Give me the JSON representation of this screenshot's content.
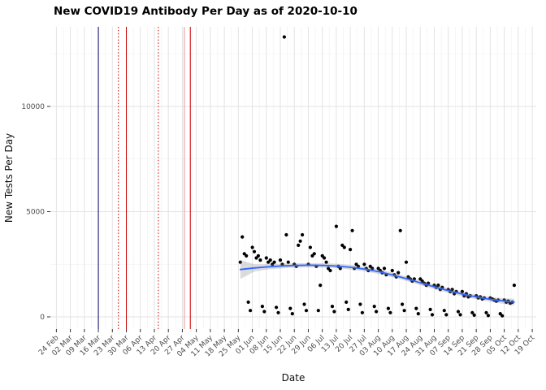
{
  "chart_data": {
    "type": "scatter",
    "title": "New COVID19 Antibody Per Day as of 2020-10-10",
    "xlabel": "Date",
    "ylabel": "New Tests Per Day",
    "x_domain": [
      "2020-02-21",
      "2020-10-21"
    ],
    "ylim": [
      -600,
      13800
    ],
    "grid": true,
    "legend": "none",
    "colors": {
      "point": "#000000",
      "smooth_line": "#3366FF",
      "ribbon": "#808080",
      "grid_major": "#E3E3E3",
      "grid_minor": "#F2F2F2",
      "axis_text": "#4D4D4D",
      "vline_navy": "#000066",
      "vline_red": "#CC0000",
      "vline_pink": "#E89090"
    },
    "x_ticks": [
      {
        "d": "2020-02-24",
        "label": "24 Feb"
      },
      {
        "d": "2020-03-02",
        "label": "02 Mar"
      },
      {
        "d": "2020-03-09",
        "label": "09 Mar"
      },
      {
        "d": "2020-03-16",
        "label": "16 Mar"
      },
      {
        "d": "2020-03-23",
        "label": "23 Mar"
      },
      {
        "d": "2020-03-30",
        "label": "30 Mar"
      },
      {
        "d": "2020-04-06",
        "label": "06 Apr"
      },
      {
        "d": "2020-04-13",
        "label": "13 Apr"
      },
      {
        "d": "2020-04-20",
        "label": "20 Apr"
      },
      {
        "d": "2020-04-27",
        "label": "27 Apr"
      },
      {
        "d": "2020-05-04",
        "label": "04 May"
      },
      {
        "d": "2020-05-11",
        "label": "11 May"
      },
      {
        "d": "2020-05-18",
        "label": "18 May"
      },
      {
        "d": "2020-05-25",
        "label": "25 May"
      },
      {
        "d": "2020-06-01",
        "label": "01 Jun"
      },
      {
        "d": "2020-06-08",
        "label": "08 Jun"
      },
      {
        "d": "2020-06-15",
        "label": "15 Jun"
      },
      {
        "d": "2020-06-22",
        "label": "22 Jun"
      },
      {
        "d": "2020-06-29",
        "label": "29 Jun"
      },
      {
        "d": "2020-07-06",
        "label": "06 Jul"
      },
      {
        "d": "2020-07-13",
        "label": "13 Jul"
      },
      {
        "d": "2020-07-20",
        "label": "20 Jul"
      },
      {
        "d": "2020-07-27",
        "label": "27 Jul"
      },
      {
        "d": "2020-08-03",
        "label": "03 Aug"
      },
      {
        "d": "2020-08-10",
        "label": "10 Aug"
      },
      {
        "d": "2020-08-17",
        "label": "17 Aug"
      },
      {
        "d": "2020-08-24",
        "label": "24 Aug"
      },
      {
        "d": "2020-08-31",
        "label": "31 Aug"
      },
      {
        "d": "2020-09-07",
        "label": "07 Sep"
      },
      {
        "d": "2020-09-14",
        "label": "14 Sep"
      },
      {
        "d": "2020-09-21",
        "label": "21 Sep"
      },
      {
        "d": "2020-09-28",
        "label": "28 Sep"
      },
      {
        "d": "2020-10-05",
        "label": "05 Oct"
      },
      {
        "d": "2020-10-12",
        "label": "12 Oct"
      },
      {
        "d": "2020-10-19",
        "label": "19 Oct"
      }
    ],
    "y_ticks": [
      {
        "v": 0,
        "label": "0"
      },
      {
        "v": 5000,
        "label": "5000"
      },
      {
        "v": 10000,
        "label": "10000"
      }
    ],
    "y_minor": [
      2500,
      7500,
      12500
    ],
    "vlines": [
      {
        "d": "2020-03-16",
        "style": "solid",
        "color": "#000066"
      },
      {
        "d": "2020-03-26",
        "style": "dotted",
        "color": "#CC0000"
      },
      {
        "d": "2020-03-30",
        "style": "solid",
        "color": "#CC0000"
      },
      {
        "d": "2020-04-15",
        "style": "dotted",
        "color": "#CC0000"
      },
      {
        "d": "2020-04-28",
        "style": "solid",
        "color": "#E89090"
      },
      {
        "d": "2020-05-01",
        "style": "solid",
        "color": "#CC0000"
      }
    ],
    "points": [
      [
        "2020-05-26",
        2600
      ],
      [
        "2020-05-27",
        3800
      ],
      [
        "2020-05-28",
        3000
      ],
      [
        "2020-05-29",
        2900
      ],
      [
        "2020-05-30",
        700
      ],
      [
        "2020-05-31",
        300
      ],
      [
        "2020-06-01",
        3300
      ],
      [
        "2020-06-02",
        3100
      ],
      [
        "2020-06-03",
        2800
      ],
      [
        "2020-06-04",
        2900
      ],
      [
        "2020-06-05",
        2700
      ],
      [
        "2020-06-06",
        500
      ],
      [
        "2020-06-07",
        250
      ],
      [
        "2020-06-08",
        2800
      ],
      [
        "2020-06-09",
        2600
      ],
      [
        "2020-06-10",
        2700
      ],
      [
        "2020-06-11",
        2500
      ],
      [
        "2020-06-12",
        2600
      ],
      [
        "2020-06-13",
        450
      ],
      [
        "2020-06-14",
        200
      ],
      [
        "2020-06-15",
        2700
      ],
      [
        "2020-06-16",
        2500
      ],
      [
        "2020-06-17",
        13300
      ],
      [
        "2020-06-18",
        3900
      ],
      [
        "2020-06-19",
        2600
      ],
      [
        "2020-06-20",
        400
      ],
      [
        "2020-06-21",
        150
      ],
      [
        "2020-06-22",
        2500
      ],
      [
        "2020-06-23",
        2400
      ],
      [
        "2020-06-24",
        3400
      ],
      [
        "2020-06-25",
        3600
      ],
      [
        "2020-06-26",
        3900
      ],
      [
        "2020-06-27",
        600
      ],
      [
        "2020-06-28",
        300
      ],
      [
        "2020-06-29",
        2500
      ],
      [
        "2020-06-30",
        3300
      ],
      [
        "2020-07-01",
        2900
      ],
      [
        "2020-07-02",
        3000
      ],
      [
        "2020-07-03",
        2400
      ],
      [
        "2020-07-04",
        300
      ],
      [
        "2020-07-05",
        1500
      ],
      [
        "2020-07-06",
        2900
      ],
      [
        "2020-07-07",
        2800
      ],
      [
        "2020-07-08",
        2600
      ],
      [
        "2020-07-09",
        2300
      ],
      [
        "2020-07-10",
        2200
      ],
      [
        "2020-07-11",
        500
      ],
      [
        "2020-07-12",
        250
      ],
      [
        "2020-07-13",
        4300
      ],
      [
        "2020-07-14",
        2400
      ],
      [
        "2020-07-15",
        2300
      ],
      [
        "2020-07-16",
        3400
      ],
      [
        "2020-07-17",
        3300
      ],
      [
        "2020-07-18",
        700
      ],
      [
        "2020-07-19",
        350
      ],
      [
        "2020-07-20",
        3200
      ],
      [
        "2020-07-21",
        4100
      ],
      [
        "2020-07-22",
        2300
      ],
      [
        "2020-07-23",
        2500
      ],
      [
        "2020-07-24",
        2400
      ],
      [
        "2020-07-25",
        600
      ],
      [
        "2020-07-26",
        200
      ],
      [
        "2020-07-27",
        2500
      ],
      [
        "2020-07-28",
        2300
      ],
      [
        "2020-07-29",
        2200
      ],
      [
        "2020-07-30",
        2400
      ],
      [
        "2020-07-31",
        2300
      ],
      [
        "2020-08-01",
        500
      ],
      [
        "2020-08-02",
        250
      ],
      [
        "2020-08-03",
        2300
      ],
      [
        "2020-08-04",
        2200
      ],
      [
        "2020-08-05",
        2100
      ],
      [
        "2020-08-06",
        2300
      ],
      [
        "2020-08-07",
        2000
      ],
      [
        "2020-08-08",
        400
      ],
      [
        "2020-08-09",
        200
      ],
      [
        "2020-08-10",
        2200
      ],
      [
        "2020-08-11",
        2000
      ],
      [
        "2020-08-12",
        1900
      ],
      [
        "2020-08-13",
        2100
      ],
      [
        "2020-08-14",
        4100
      ],
      [
        "2020-08-15",
        600
      ],
      [
        "2020-08-16",
        300
      ],
      [
        "2020-08-17",
        2600
      ],
      [
        "2020-08-18",
        1900
      ],
      [
        "2020-08-19",
        1800
      ],
      [
        "2020-08-20",
        1700
      ],
      [
        "2020-08-21",
        1800
      ],
      [
        "2020-08-22",
        400
      ],
      [
        "2020-08-23",
        150
      ],
      [
        "2020-08-24",
        1800
      ],
      [
        "2020-08-25",
        1700
      ],
      [
        "2020-08-26",
        1600
      ],
      [
        "2020-08-27",
        1500
      ],
      [
        "2020-08-28",
        1600
      ],
      [
        "2020-08-29",
        350
      ],
      [
        "2020-08-30",
        100
      ],
      [
        "2020-08-31",
        1500
      ],
      [
        "2020-09-01",
        1400
      ],
      [
        "2020-09-02",
        1500
      ],
      [
        "2020-09-03",
        1300
      ],
      [
        "2020-09-04",
        1400
      ],
      [
        "2020-09-05",
        300
      ],
      [
        "2020-09-06",
        100
      ],
      [
        "2020-09-07",
        1300
      ],
      [
        "2020-09-08",
        1200
      ],
      [
        "2020-09-09",
        1300
      ],
      [
        "2020-09-10",
        1100
      ],
      [
        "2020-09-11",
        1200
      ],
      [
        "2020-09-12",
        250
      ],
      [
        "2020-09-13",
        100
      ],
      [
        "2020-09-14",
        1200
      ],
      [
        "2020-09-15",
        1000
      ],
      [
        "2020-09-16",
        1100
      ],
      [
        "2020-09-17",
        950
      ],
      [
        "2020-09-18",
        1000
      ],
      [
        "2020-09-19",
        200
      ],
      [
        "2020-09-20",
        80
      ],
      [
        "2020-09-21",
        1000
      ],
      [
        "2020-09-22",
        900
      ],
      [
        "2020-09-23",
        950
      ],
      [
        "2020-09-24",
        850
      ],
      [
        "2020-09-25",
        900
      ],
      [
        "2020-09-26",
        200
      ],
      [
        "2020-09-27",
        60
      ],
      [
        "2020-09-28",
        900
      ],
      [
        "2020-09-29",
        850
      ],
      [
        "2020-09-30",
        800
      ],
      [
        "2020-10-01",
        750
      ],
      [
        "2020-10-02",
        800
      ],
      [
        "2020-10-03",
        150
      ],
      [
        "2020-10-04",
        50
      ],
      [
        "2020-10-05",
        800
      ],
      [
        "2020-10-06",
        700
      ],
      [
        "2020-10-07",
        750
      ],
      [
        "2020-10-08",
        650
      ],
      [
        "2020-10-09",
        700
      ],
      [
        "2020-10-10",
        1500
      ]
    ],
    "smooth": [
      [
        "2020-05-26",
        2250
      ],
      [
        "2020-06-02",
        2325
      ],
      [
        "2020-06-09",
        2380
      ],
      [
        "2020-06-16",
        2420
      ],
      [
        "2020-06-23",
        2445
      ],
      [
        "2020-06-30",
        2455
      ],
      [
        "2020-07-07",
        2445
      ],
      [
        "2020-07-14",
        2410
      ],
      [
        "2020-07-21",
        2350
      ],
      [
        "2020-07-28",
        2260
      ],
      [
        "2020-08-04",
        2130
      ],
      [
        "2020-08-11",
        1970
      ],
      [
        "2020-08-18",
        1790
      ],
      [
        "2020-08-25",
        1590
      ],
      [
        "2020-09-01",
        1400
      ],
      [
        "2020-09-08",
        1220
      ],
      [
        "2020-09-15",
        1060
      ],
      [
        "2020-09-22",
        930
      ],
      [
        "2020-09-29",
        820
      ],
      [
        "2020-10-06",
        740
      ],
      [
        "2020-10-10",
        700
      ]
    ],
    "ribbon": [
      [
        "2020-05-26",
        1800,
        2700
      ],
      [
        "2020-06-02",
        2150,
        2500
      ],
      [
        "2020-06-09",
        2260,
        2500
      ],
      [
        "2020-06-16",
        2310,
        2530
      ],
      [
        "2020-06-23",
        2340,
        2550
      ],
      [
        "2020-06-30",
        2350,
        2560
      ],
      [
        "2020-07-07",
        2340,
        2550
      ],
      [
        "2020-07-14",
        2300,
        2520
      ],
      [
        "2020-07-21",
        2240,
        2460
      ],
      [
        "2020-07-28",
        2150,
        2370
      ],
      [
        "2020-08-04",
        2020,
        2240
      ],
      [
        "2020-08-11",
        1860,
        2080
      ],
      [
        "2020-08-18",
        1680,
        1900
      ],
      [
        "2020-08-25",
        1480,
        1700
      ],
      [
        "2020-09-01",
        1290,
        1510
      ],
      [
        "2020-09-08",
        1110,
        1330
      ],
      [
        "2020-09-15",
        950,
        1170
      ],
      [
        "2020-09-22",
        820,
        1040
      ],
      [
        "2020-09-29",
        700,
        940
      ],
      [
        "2020-10-06",
        600,
        880
      ],
      [
        "2020-10-10",
        540,
        860
      ]
    ]
  }
}
